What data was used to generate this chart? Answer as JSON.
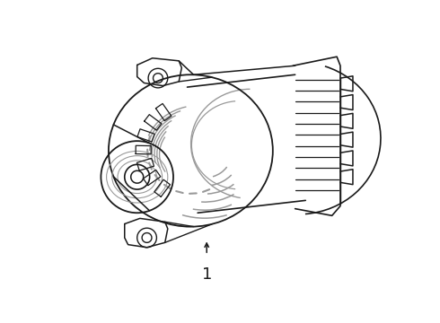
{
  "bg_color": "#ffffff",
  "line_color": "#1a1a1a",
  "gray_color": "#999999",
  "label": "1",
  "label_fontsize": 13,
  "fig_width": 4.9,
  "fig_height": 3.6,
  "dpi": 100
}
